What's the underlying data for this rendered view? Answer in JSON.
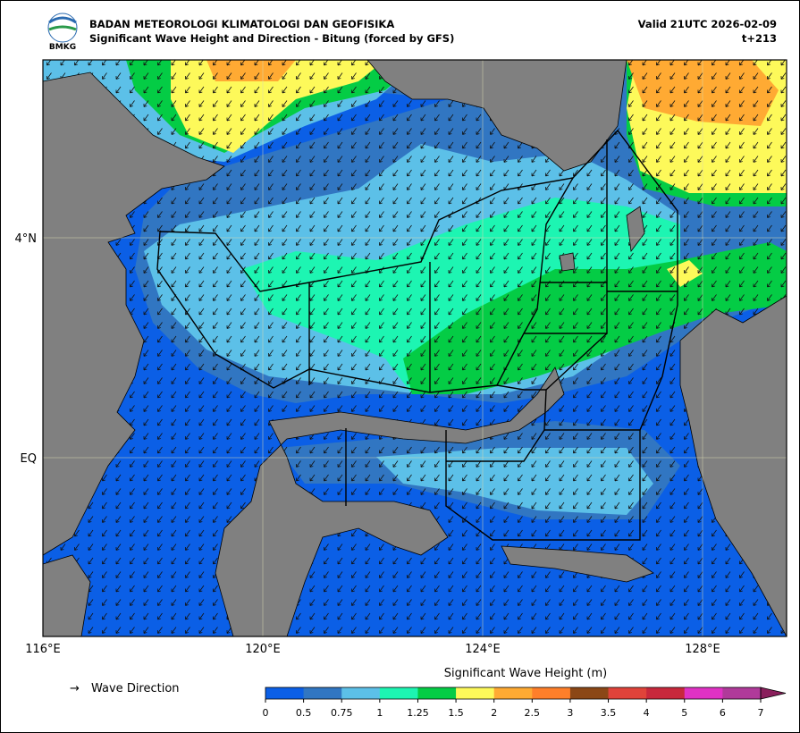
{
  "header": {
    "agency": "BADAN METEOROLOGI KLIMATOLOGI DAN GEOFISIKA",
    "title": "Significant Wave Height and Direction - Bitung (forced by GFS)",
    "valid": "Valid 21UTC 2026-02-09",
    "step": "t+213",
    "logo_text": "BMKG"
  },
  "map": {
    "lon_labels": [
      "116°E",
      "120°E",
      "124°E",
      "128°E"
    ],
    "lat_labels": [
      "4°N",
      "EQ"
    ]
  },
  "legend": {
    "arrow": "→",
    "label": "Wave Direction"
  },
  "colorbar": {
    "title": "Significant Wave Height (m)",
    "levels": [
      0,
      0.5,
      0.75,
      1,
      1.25,
      1.5,
      2,
      2.5,
      3,
      3.5,
      4,
      5,
      6,
      7
    ],
    "colors": [
      "#0b5fe6",
      "#3176c2",
      "#5cc0e8",
      "#1df5b2",
      "#04cc45",
      "#fdf95a",
      "#ffaa33",
      "#ff7f2a",
      "#8b4716",
      "#e0433a",
      "#c8283c",
      "#e032c4",
      "#b03a9a",
      "#8a1f5c"
    ]
  }
}
